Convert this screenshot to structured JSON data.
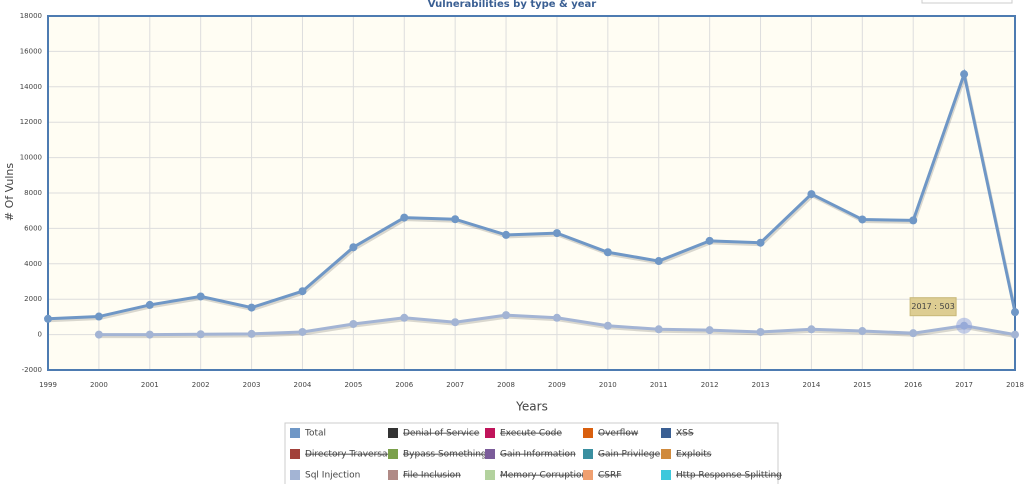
{
  "chart_data": {
    "type": "line",
    "title": "Vulnerabilities by type & year",
    "y_label": "# Of Vulns",
    "x_label": "Years",
    "categories": [
      "1999",
      "2000",
      "2001",
      "2002",
      "2003",
      "2004",
      "2005",
      "2006",
      "2007",
      "2008",
      "2009",
      "2010",
      "2011",
      "2012",
      "2013",
      "2014",
      "2015",
      "2016",
      "2017",
      "2018"
    ],
    "ylim": [
      -2000,
      18000
    ],
    "yticks": [
      -2000,
      0,
      2000,
      4000,
      6000,
      8000,
      10000,
      12000,
      14000,
      16000,
      18000
    ],
    "grid": true,
    "tooltip": "2017 : 503",
    "series": [
      {
        "name": "Total",
        "color": "#6f97c6",
        "values": [
          894,
          1020,
          1677,
          2156,
          1527,
          2451,
          4935,
          6610,
          6520,
          5632,
          5736,
          4652,
          4155,
          5297,
          5191,
          7939,
          6504,
          6454,
          14714,
          1270
        ]
      },
      {
        "name": "Denial of Service",
        "color": "#333333",
        "hidden": true
      },
      {
        "name": "Execute Code",
        "color": "#c0145a",
        "hidden": true
      },
      {
        "name": "Overflow",
        "color": "#d95f0e",
        "hidden": true
      },
      {
        "name": "XSS",
        "color": "#3a5f93",
        "hidden": true
      },
      {
        "name": "Directory Traversal",
        "color": "#a2413a",
        "hidden": true
      },
      {
        "name": "Bypass Something",
        "color": "#7aa04a",
        "hidden": true
      },
      {
        "name": "Gain Information",
        "color": "#7b5c9a",
        "hidden": true
      },
      {
        "name": "Gain Privilege",
        "color": "#3a8fa0",
        "hidden": true
      },
      {
        "name": "Exploits",
        "color": "#d08a3c",
        "hidden": true
      },
      {
        "name": "Sql Injection",
        "color": "#a3b4d4",
        "values": [
          null,
          0,
          0,
          20,
          40,
          150,
          600,
          950,
          700,
          1100,
          950,
          500,
          300,
          250,
          150,
          300,
          200,
          80,
          503,
          0
        ]
      },
      {
        "name": "File Inclusion",
        "color": "#b08a86",
        "hidden": true
      },
      {
        "name": "Memory Corruption",
        "color": "#b3d29e",
        "hidden": true
      },
      {
        "name": "CSRF",
        "color": "#f0a070",
        "hidden": true
      },
      {
        "name": "Http Response Splitting",
        "color": "#3cc8dc",
        "hidden": true
      }
    ]
  }
}
